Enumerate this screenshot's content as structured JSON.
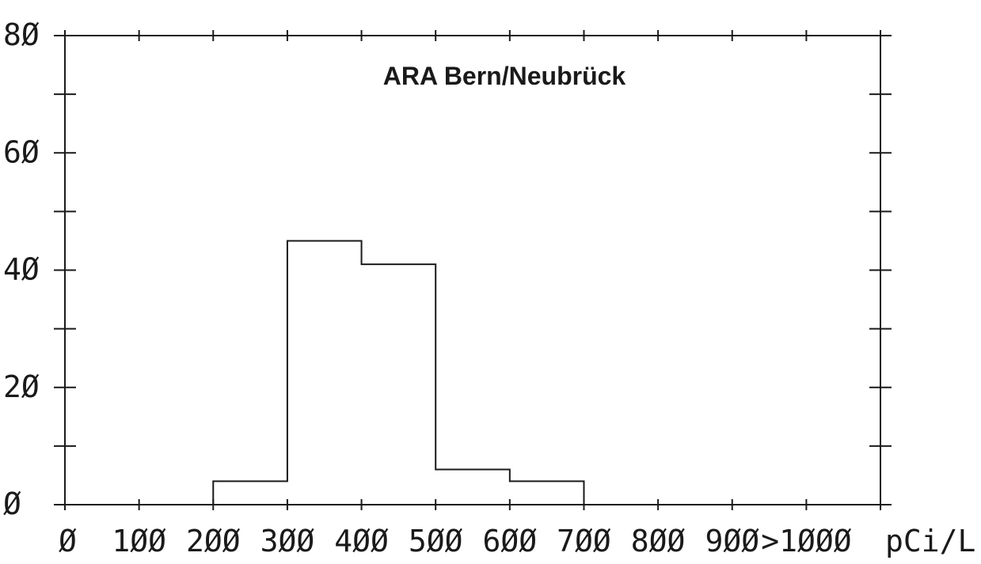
{
  "chart_data": {
    "type": "histogram",
    "title": "ARA  Bern/Neubrück",
    "xlabel": "pCi/L",
    "ylabel": "",
    "x_tick_labels": [
      "Ø",
      "1ØØ",
      "2ØØ",
      "3ØØ",
      "4ØØ",
      "5ØØ",
      "6ØØ",
      "7ØØ",
      "8ØØ",
      "9ØØ",
      ">1ØØØ"
    ],
    "y_tick_labels": [
      "Ø",
      "2Ø",
      "4Ø",
      "6Ø",
      "8Ø"
    ],
    "ylim": [
      0,
      80
    ],
    "bins": [
      {
        "from": 0,
        "to": 100,
        "value": 0
      },
      {
        "from": 100,
        "to": 200,
        "value": 0
      },
      {
        "from": 200,
        "to": 300,
        "value": 4
      },
      {
        "from": 300,
        "to": 400,
        "value": 45
      },
      {
        "from": 400,
        "to": 500,
        "value": 41
      },
      {
        "from": 500,
        "to": 600,
        "value": 6
      },
      {
        "from": 600,
        "to": 700,
        "value": 4
      },
      {
        "from": 700,
        "to": 800,
        "value": 0
      },
      {
        "from": 800,
        "to": 900,
        "value": 0
      },
      {
        "from": 900,
        "to": 1000,
        "value": 0
      },
      {
        "from": 1000,
        "to": null,
        "value": 0
      }
    ],
    "grid": false,
    "legend": "none",
    "colors": {
      "line": "#1a1a1a",
      "background": "#ffffff"
    }
  }
}
